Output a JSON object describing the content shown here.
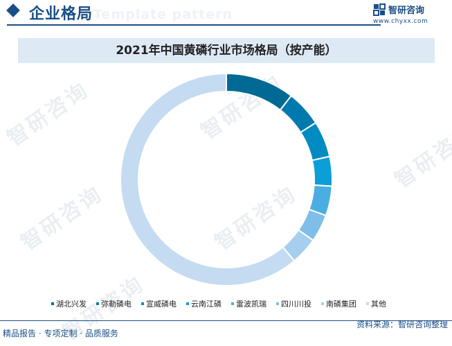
{
  "header": {
    "title": "企业格局",
    "ghost_text": "Template pattern",
    "brand_name": "智研咨询",
    "brand_url": "www.chyxx.com"
  },
  "watermark_text": "智研咨询",
  "chart_data": {
    "type": "pie",
    "title": "2021年中国黄磷行业市场格局（按产能）",
    "categories": [
      "湖北兴发",
      "弥勒磷电",
      "宣威磷电",
      "云南江磷",
      "雷波凯瑞",
      "四川川投",
      "南磷集团",
      "其他"
    ],
    "values": [
      10.5,
      5.5,
      5.5,
      4.5,
      4.5,
      4.2,
      4.2,
      61.1
    ],
    "colors": [
      "#006a94",
      "#007aad",
      "#008bc2",
      "#0c9ed6",
      "#4aaee2",
      "#7ebee8",
      "#a6cfee",
      "#c4dbf1"
    ],
    "legend_position": "bottom"
  },
  "footer": {
    "left": "精品报告 · 专项定制 · 品质服务",
    "right": "资料来源：智研咨询整理"
  }
}
